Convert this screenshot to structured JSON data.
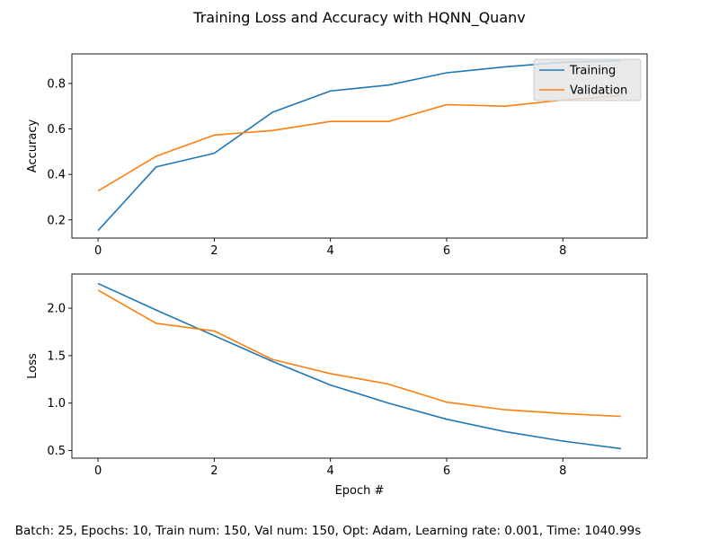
{
  "figure": {
    "title": "Training Loss and Accuracy with HQNN_Quanv",
    "footer": "Batch: 25, Epochs: 10, Train num: 150, Val num: 150, Opt: Adam, Learning rate: 0.001, Time: 1040.99s"
  },
  "colors": {
    "training": "#1f77b4",
    "validation": "#ff7f0e"
  },
  "chart_data": [
    {
      "type": "line",
      "title": "",
      "xlabel": "",
      "ylabel": "Accuracy",
      "x": [
        0,
        1,
        2,
        3,
        4,
        5,
        6,
        7,
        8,
        9
      ],
      "xticks": [
        0,
        2,
        4,
        6,
        8
      ],
      "yticks": [
        0.2,
        0.4,
        0.6,
        0.8
      ],
      "xlim": [
        -0.45,
        9.45
      ],
      "ylim": [
        0.12,
        0.93
      ],
      "grid": false,
      "legend": "upper right",
      "series": [
        {
          "name": "Training",
          "color": "#1f77b4",
          "values": [
            0.153,
            0.433,
            0.493,
            0.673,
            0.767,
            0.793,
            0.847,
            0.873,
            0.893,
            0.9
          ]
        },
        {
          "name": "Validation",
          "color": "#ff7f0e",
          "values": [
            0.327,
            0.48,
            0.573,
            0.593,
            0.633,
            0.633,
            0.707,
            0.7,
            0.727,
            0.747
          ]
        }
      ]
    },
    {
      "type": "line",
      "title": "",
      "xlabel": "Epoch #",
      "ylabel": "Loss",
      "x": [
        0,
        1,
        2,
        3,
        4,
        5,
        6,
        7,
        8,
        9
      ],
      "xticks": [
        0,
        2,
        4,
        6,
        8
      ],
      "yticks": [
        0.5,
        1.0,
        1.5,
        2.0
      ],
      "ytick_labels": [
        "0.5",
        "1.0",
        "1.5",
        "2.0"
      ],
      "xlim": [
        -0.45,
        9.45
      ],
      "ylim": [
        0.42,
        2.36
      ],
      "grid": false,
      "series": [
        {
          "name": "Training",
          "color": "#1f77b4",
          "values": [
            2.26,
            1.98,
            1.71,
            1.44,
            1.19,
            1.0,
            0.83,
            0.7,
            0.6,
            0.52
          ]
        },
        {
          "name": "Validation",
          "color": "#ff7f0e",
          "values": [
            2.19,
            1.84,
            1.76,
            1.46,
            1.31,
            1.2,
            1.01,
            0.93,
            0.89,
            0.86
          ]
        }
      ]
    }
  ]
}
